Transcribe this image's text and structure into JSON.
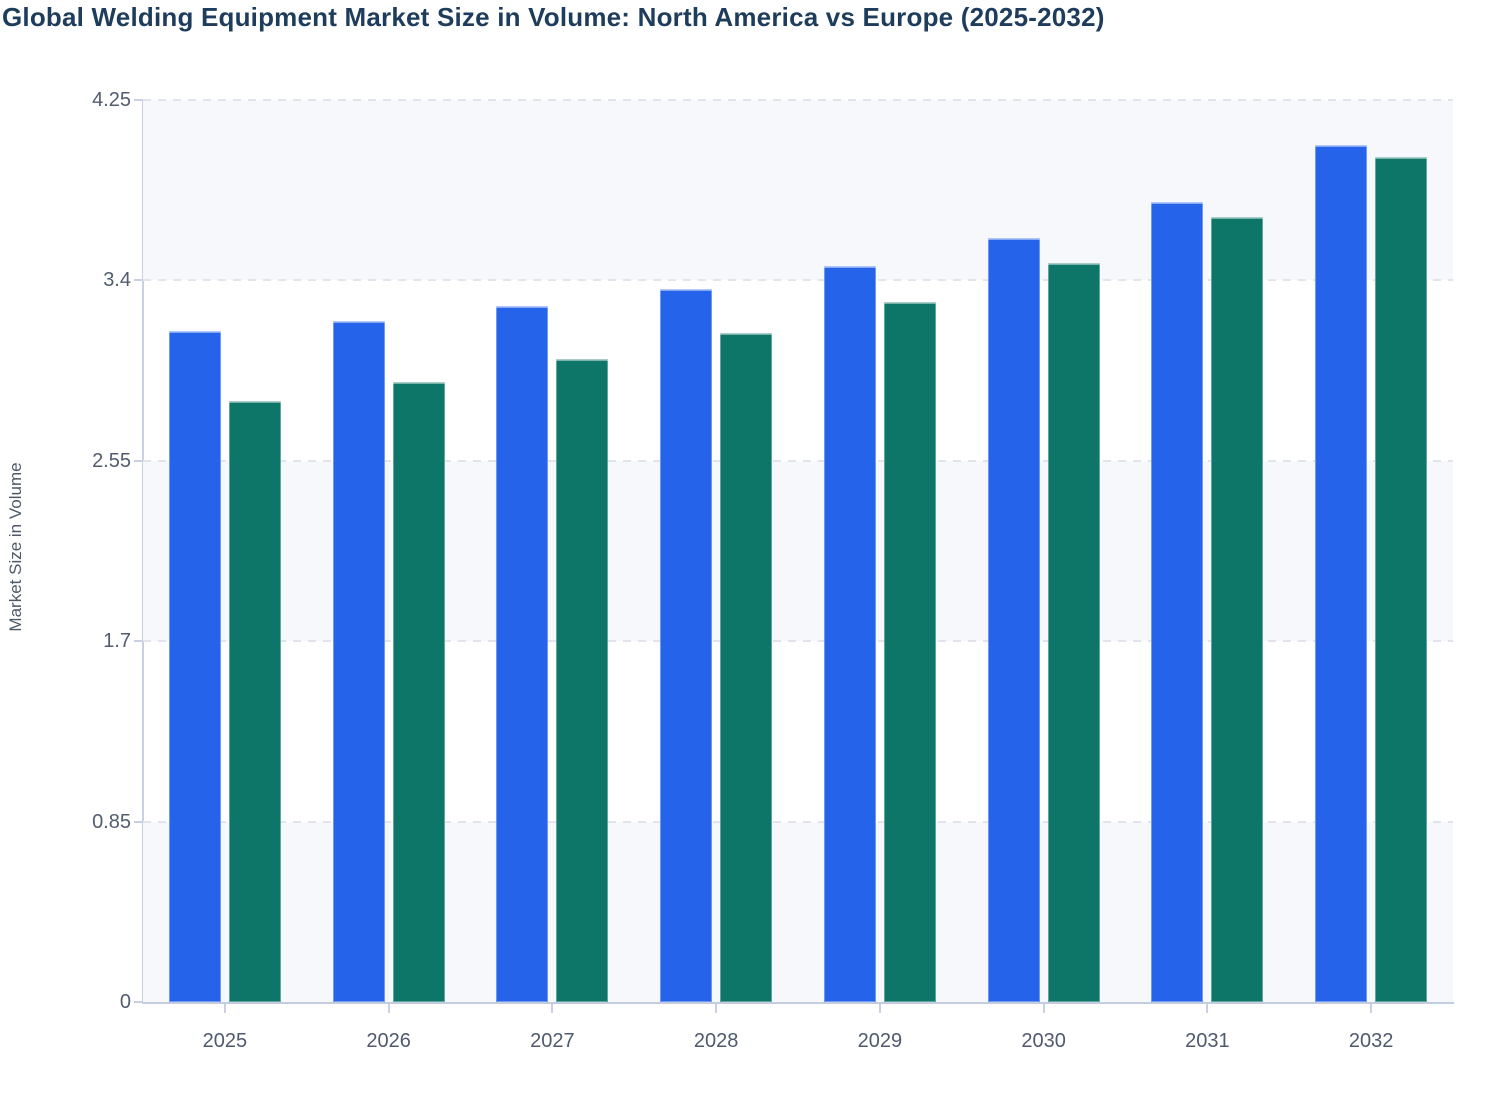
{
  "title": "Global Welding Equipment Market Size in Volume: North America vs Europe (2025-2032)",
  "chart_data": {
    "type": "bar",
    "title": "Global Welding Equipment Market Size in Volume: North America vs Europe (2025-2032)",
    "categories": [
      "2025",
      "2026",
      "2027",
      "2028",
      "2029",
      "2030",
      "2031",
      "2032"
    ],
    "series": [
      {
        "name": "North America",
        "color": "#2563eb",
        "values": [
          3.16,
          3.21,
          3.28,
          3.36,
          3.47,
          3.6,
          3.77,
          4.04
        ]
      },
      {
        "name": "Europe",
        "color": "#0e7569",
        "values": [
          2.83,
          2.92,
          3.03,
          3.15,
          3.3,
          3.48,
          3.7,
          3.98
        ]
      }
    ],
    "xlabel": "",
    "ylabel": "Market Size in Volume",
    "ylim": [
      0,
      4.25
    ],
    "yticks": [
      0,
      0.85,
      1.7,
      2.55,
      3.4,
      4.25
    ],
    "ytick_labels": [
      "0",
      "0.85",
      "1.7",
      "2.55",
      "3.4",
      "4.25"
    ],
    "grid": "horizontal-dashed",
    "plot_bands": "alternating-light",
    "legend_position": "none"
  },
  "colors": {
    "title_text": "#1e3c5b",
    "axis_line": "#c9d0e4",
    "gridline": "#e1e4ed",
    "band_fill": "#f6f8fb",
    "tick_text": "#515d6e",
    "bar_blue": "#2563eb",
    "bar_green": "#0e7569"
  }
}
